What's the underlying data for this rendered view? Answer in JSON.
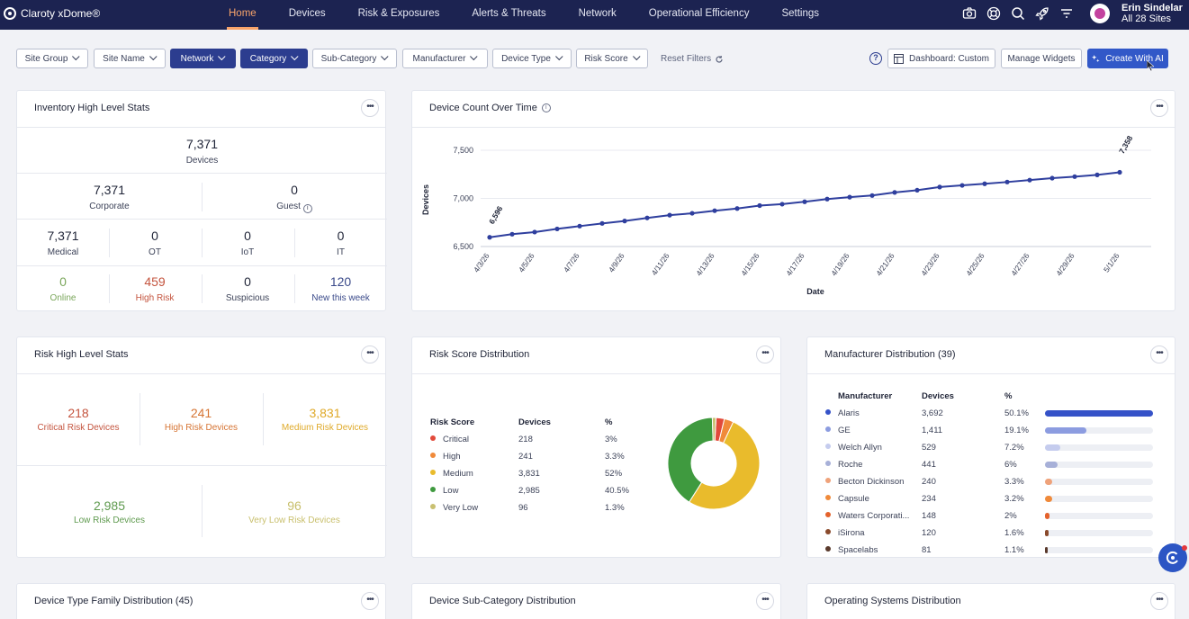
{
  "app": {
    "brand": "Claroty xDome®"
  },
  "nav": [
    {
      "label": "Home",
      "active": true
    },
    {
      "label": "Devices"
    },
    {
      "label": "Risk & Exposures"
    },
    {
      "label": "Alerts & Threats"
    },
    {
      "label": "Network"
    },
    {
      "label": "Operational Efficiency"
    },
    {
      "label": "Settings"
    }
  ],
  "user": {
    "name": "Erin Sindelar",
    "sites": "All 28 Sites"
  },
  "filters": [
    {
      "label": "Site Group",
      "active": false
    },
    {
      "label": "Site Name",
      "active": false
    },
    {
      "label": "Network",
      "active": true
    },
    {
      "label": "Category",
      "active": true
    },
    {
      "label": "Sub-Category",
      "active": false
    },
    {
      "label": "Manufacturer",
      "active": false
    },
    {
      "label": "Device Type",
      "active": false
    },
    {
      "label": "Risk Score",
      "active": false
    }
  ],
  "toolbar": {
    "reset": "Reset Filters",
    "help": "?",
    "dashboard": "Dashboard: Custom",
    "manage": "Manage Widgets",
    "create": "Create With AI"
  },
  "inventory": {
    "title": "Inventory High Level Stats",
    "devices": {
      "value": "7,371",
      "label": "Devices"
    },
    "corporate": {
      "value": "7,371",
      "label": "Corporate"
    },
    "guest": {
      "value": "0",
      "label": "Guest"
    },
    "medical": {
      "value": "7,371",
      "label": "Medical"
    },
    "ot": {
      "value": "0",
      "label": "OT"
    },
    "iot": {
      "value": "0",
      "label": "IoT"
    },
    "it": {
      "value": "0",
      "label": "IT"
    },
    "online": {
      "value": "0",
      "label": "Online",
      "color": "#7aa65a"
    },
    "high_risk": {
      "value": "459",
      "label": "High Risk",
      "color": "#c4543e"
    },
    "suspicious": {
      "value": "0",
      "label": "Suspicious"
    },
    "new_week": {
      "value": "120",
      "label": "New this week",
      "color": "#3a4a8a"
    }
  },
  "device_count": {
    "title": "Device Count Over Time"
  },
  "chart_data": {
    "type": "line",
    "xlabel": "Date",
    "ylabel": "Devices",
    "ylim": [
      6500,
      7500
    ],
    "yticks": [
      6500,
      7000,
      7500
    ],
    "ytick_labels": [
      "6,500",
      "7,000",
      "7,500"
    ],
    "xtick_labels": [
      "4/3/26",
      "4/5/26",
      "4/7/26",
      "4/9/26",
      "4/11/26",
      "4/13/26",
      "4/15/26",
      "4/17/26",
      "4/19/26",
      "4/21/26",
      "4/23/26",
      "4/25/26",
      "4/27/26",
      "4/29/26",
      "5/1/26"
    ],
    "x": [
      "4/3/26",
      "4/4/26",
      "4/5/26",
      "4/6/26",
      "4/7/26",
      "4/8/26",
      "4/9/26",
      "4/10/26",
      "4/11/26",
      "4/12/26",
      "4/13/26",
      "4/14/26",
      "4/15/26",
      "4/16/26",
      "4/17/26",
      "4/18/26",
      "4/19/26",
      "4/20/26",
      "4/21/26",
      "4/22/26",
      "4/23/26",
      "4/24/26",
      "4/25/26",
      "4/26/26",
      "4/27/26",
      "4/28/26",
      "4/29/26",
      "4/30/26",
      "5/1/26",
      "5/2/26"
    ],
    "values": [
      6596,
      6628,
      6650,
      6683,
      6712,
      6740,
      6765,
      6797,
      6826,
      6845,
      6872,
      6895,
      6925,
      6940,
      6965,
      6993,
      7013,
      7030,
      7062,
      7085,
      7118,
      7135,
      7152,
      7170,
      7190,
      7210,
      7226,
      7244,
      7271,
      7358
    ],
    "annotations": [
      {
        "x": "4/3/26",
        "label": "6,596"
      },
      {
        "x": "5/2/26",
        "label": "7,358"
      }
    ],
    "grid": true,
    "color": "#2f3f9e"
  },
  "risk_stats": {
    "title": "Risk High Level Stats",
    "critical": {
      "value": "218",
      "label": "Critical Risk Devices",
      "color": "#c4543e"
    },
    "high": {
      "value": "241",
      "label": "High Risk Devices",
      "color": "#d67433"
    },
    "medium": {
      "value": "3,831",
      "label": "Medium Risk Devices",
      "color": "#dfa928"
    },
    "low": {
      "value": "2,985",
      "label": "Low Risk Devices",
      "color": "#5f9a4f"
    },
    "very_low": {
      "value": "96",
      "label": "Very Low Risk Devices",
      "color": "#c8bf6c"
    }
  },
  "risk_dist": {
    "title": "Risk Score Distribution",
    "headers": [
      "Risk Score",
      "Devices",
      "%"
    ],
    "rows": [
      {
        "name": "Critical",
        "devices": "218",
        "pct": "3%",
        "value": 218,
        "color": "#e24a3b"
      },
      {
        "name": "High",
        "devices": "241",
        "pct": "3.3%",
        "value": 241,
        "color": "#f08a3a"
      },
      {
        "name": "Medium",
        "devices": "3,831",
        "pct": "52%",
        "value": 3831,
        "color": "#e9bb2c"
      },
      {
        "name": "Low",
        "devices": "2,985",
        "pct": "40.5%",
        "value": 2985,
        "color": "#3f9a3f"
      },
      {
        "name": "Very Low",
        "devices": "96",
        "pct": "1.3%",
        "value": 96,
        "color": "#c9c071"
      }
    ]
  },
  "manufacturer": {
    "title": "Manufacturer Distribution (39)",
    "headers": [
      "Manufacturer",
      "Devices",
      "%"
    ],
    "rows": [
      {
        "name": "Alaris",
        "devices": "3,692",
        "pct": "50.1%",
        "frac": 0.501,
        "color": "#3552c8"
      },
      {
        "name": "GE",
        "devices": "1,411",
        "pct": "19.1%",
        "frac": 0.191,
        "color": "#8c9ce0"
      },
      {
        "name": "Welch Allyn",
        "devices": "529",
        "pct": "7.2%",
        "frac": 0.072,
        "color": "#c5ccee"
      },
      {
        "name": "Roche",
        "devices": "441",
        "pct": "6%",
        "frac": 0.06,
        "color": "#a7b0d8"
      },
      {
        "name": "Becton Dickinson",
        "devices": "240",
        "pct": "3.3%",
        "frac": 0.033,
        "color": "#efa27a"
      },
      {
        "name": "Capsule",
        "devices": "234",
        "pct": "3.2%",
        "frac": 0.032,
        "color": "#f08a3a"
      },
      {
        "name": "Waters Corporati...",
        "devices": "148",
        "pct": "2%",
        "frac": 0.02,
        "color": "#e4622c"
      },
      {
        "name": "iSirona",
        "devices": "120",
        "pct": "1.6%",
        "frac": 0.016,
        "color": "#8a4a2c"
      },
      {
        "name": "Spacelabs",
        "devices": "81",
        "pct": "1.1%",
        "frac": 0.011,
        "color": "#5a3a2c"
      }
    ]
  },
  "bottom_cards": {
    "device_type": "Device Type Family Distribution (45)",
    "sub_category": "Device Sub-Category Distribution",
    "os": "Operating Systems Distribution"
  },
  "icons": [
    "camera-icon",
    "support-icon",
    "search-icon",
    "rocket-icon",
    "filter-icon",
    "refresh-icon",
    "info-icon",
    "dashboard-icon",
    "sparkle-icon",
    "more-icon",
    "claroty-logo"
  ]
}
